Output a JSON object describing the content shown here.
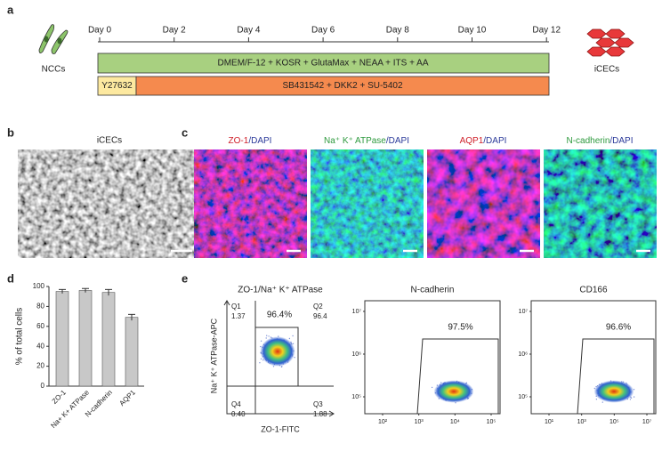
{
  "panel_a": {
    "label": "a",
    "days": [
      "Day 0",
      "Day 2",
      "Day 4",
      "Day 6",
      "Day 8",
      "Day 10",
      "Day 12"
    ],
    "left_cells": "NCCs",
    "right_cells": "iCECs",
    "medium": "DMEM/F-12 + KOSR + GlutaMax + NEAA + ITS + AA",
    "early_factor": "Y27632",
    "factors": "SB431542 + DKK2 + SU-5402"
  },
  "panel_b": {
    "label": "b",
    "title": "iCECs"
  },
  "panel_c": {
    "label": "c",
    "stains": [
      {
        "marker": "ZO-1",
        "counter": "/DAPI"
      },
      {
        "marker": "Na⁺ K⁺ ATPase",
        "counter": "/DAPI"
      },
      {
        "marker": "AQP1",
        "counter": "/DAPI"
      },
      {
        "marker": "N-cadherin",
        "counter": "/DAPI"
      }
    ]
  },
  "chart_data": {
    "type": "bar",
    "label": "d",
    "y_label": "% of total cells",
    "categories": [
      "ZO-1",
      "Na+ K+ ATPase",
      "N-cadherin",
      "AQP1"
    ],
    "values": [
      95,
      96,
      94,
      69
    ],
    "errors": [
      2,
      2,
      3,
      3
    ],
    "color": "#c8c8c8",
    "ylim": [
      0,
      100
    ],
    "yticks": [
      0,
      20,
      40,
      60,
      80,
      100
    ]
  },
  "panel_e": {
    "label": "e",
    "plots": [
      {
        "title": "ZO-1/Na⁺ K⁺ ATPase",
        "gate": "96.4%",
        "y_label": "Na⁺ K⁺ ATPase-APC",
        "x_label": "ZO-1-FITC",
        "quadrants": [
          {
            "name": "Q1",
            "value": "1.37"
          },
          {
            "name": "Q2",
            "value": "96.4"
          },
          {
            "name": "Q4",
            "value": "0.40"
          },
          {
            "name": "Q3",
            "value": "1.88"
          }
        ]
      },
      {
        "title": "N-cadherin",
        "gate": "97.5%",
        "yticks": [
          "10⁷",
          "10⁶",
          "10⁵"
        ],
        "xticks": [
          "10²",
          "10³",
          "10⁴",
          "10⁵"
        ]
      },
      {
        "title": "CD166",
        "gate": "96.6%",
        "yticks": [
          "10⁷",
          "10⁶",
          "10⁵"
        ],
        "xticks": [
          "10¹",
          "10³",
          "10⁵",
          "10⁷"
        ]
      }
    ]
  }
}
